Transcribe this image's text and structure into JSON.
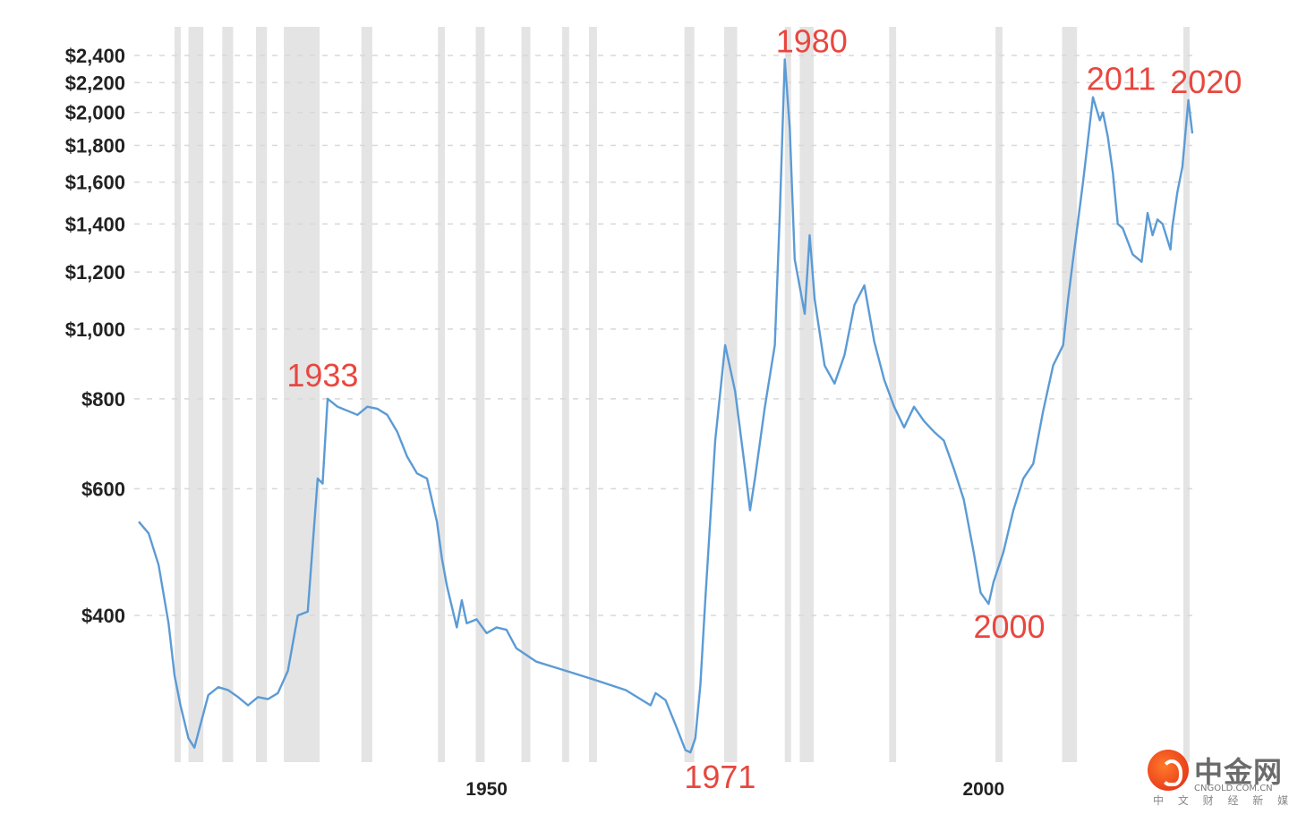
{
  "chart_data": {
    "type": "line",
    "title": "",
    "xlabel": "",
    "ylabel": "",
    "x_ticks": [
      "1950",
      "2000"
    ],
    "y_ticks": [
      "$2,400",
      "$2,200",
      "$2,000",
      "$1,800",
      "$1,600",
      "$1,400",
      "$1,200",
      "$1,000",
      "$800",
      "$600",
      "$400"
    ],
    "y_tick_values": [
      2400,
      2200,
      2000,
      1800,
      1600,
      1400,
      1200,
      1000,
      800,
      600,
      400
    ],
    "y_scale": "log",
    "xlim": [
      1915,
      2021
    ],
    "ylim": [
      240,
      2450
    ],
    "grid": "horizontal dashed",
    "series_color": "#5b9bd5",
    "recession_color": "#e4e4e4",
    "recessions": [
      [
        1918.6,
        1919.1
      ],
      [
        1920.0,
        1921.5
      ],
      [
        1923.4,
        1924.5
      ],
      [
        1926.8,
        1927.9
      ],
      [
        1929.6,
        1933.2
      ],
      [
        1937.4,
        1938.5
      ],
      [
        1945.1,
        1945.8
      ],
      [
        1948.9,
        1949.8
      ],
      [
        1953.5,
        1954.4
      ],
      [
        1957.6,
        1958.3
      ],
      [
        1960.3,
        1961.1
      ],
      [
        1969.9,
        1970.9
      ],
      [
        1973.9,
        1975.2
      ],
      [
        1980.0,
        1980.5
      ],
      [
        1981.5,
        1982.9
      ],
      [
        1990.5,
        1991.2
      ],
      [
        2001.2,
        2001.9
      ],
      [
        2007.9,
        2009.4
      ],
      [
        2020.1,
        2020.4
      ]
    ],
    "series": [
      {
        "x": [
          1915.0,
          1916.0,
          1917.0,
          1918.0,
          1918.6,
          1919.2,
          1920.0,
          1920.6,
          1921.0,
          1922.0,
          1923.0,
          1924.0,
          1925.0,
          1926.0,
          1927.0,
          1928.0,
          1929.0,
          1930.0,
          1931.0,
          1932.0,
          1933.0,
          1933.5,
          1934.0,
          1935.0,
          1936.0,
          1937.0,
          1938.0,
          1939.0,
          1940.0,
          1941.0,
          1942.0,
          1943.0,
          1944.0,
          1945.0,
          1945.5,
          1946.0,
          1947.0,
          1947.5,
          1948.0,
          1949.0,
          1950.0,
          1951.0,
          1952.0,
          1953.0,
          1955.0,
          1958.0,
          1961.0,
          1964.0,
          1966.5,
          1967.0,
          1968.0,
          1969.0,
          1970.0,
          1970.5,
          1971.0,
          1971.5,
          1972.0,
          1973.0,
          1974.0,
          1975.0,
          1976.0,
          1976.5,
          1977.0,
          1978.0,
          1979.0,
          1979.5,
          1980.0,
          1980.5,
          1981.0,
          1982.0,
          1982.5,
          1983.0,
          1984.0,
          1985.0,
          1986.0,
          1987.0,
          1988.0,
          1989.0,
          1990.0,
          1991.0,
          1992.0,
          1993.0,
          1994.0,
          1995.0,
          1996.0,
          1997.0,
          1998.0,
          1999.0,
          1999.7,
          2000.5,
          2001.0,
          2002.0,
          2003.0,
          2004.0,
          2005.0,
          2006.0,
          2007.0,
          2008.0,
          2008.5,
          2009.0,
          2010.0,
          2011.0,
          2011.7,
          2012.0,
          2012.5,
          2013.0,
          2013.5,
          2014.0,
          2015.0,
          2015.9,
          2016.5,
          2017.0,
          2017.5,
          2018.0,
          2018.8,
          2019.0,
          2019.5,
          2020.0,
          2020.6,
          2021.0
        ],
        "y": [
          540,
          520,
          470,
          390,
          330,
          300,
          270,
          262,
          275,
          310,
          318,
          315,
          308,
          300,
          308,
          306,
          312,
          335,
          400,
          405,
          620,
          610,
          800,
          780,
          770,
          760,
          780,
          775,
          760,
          720,
          665,
          630,
          620,
          540,
          480,
          440,
          385,
          420,
          390,
          395,
          378,
          385,
          382,
          360,
          345,
          335,
          325,
          315,
          300,
          312,
          305,
          282,
          260,
          258,
          270,
          320,
          420,
          700,
          950,
          820,
          640,
          560,
          620,
          780,
          950,
          1450,
          2370,
          1900,
          1250,
          1050,
          1350,
          1100,
          890,
          840,
          920,
          1080,
          1150,
          960,
          850,
          780,
          730,
          780,
          745,
          720,
          700,
          640,
          580,
          490,
          430,
          415,
          445,
          490,
          560,
          620,
          650,
          770,
          890,
          950,
          1100,
          1250,
          1600,
          2100,
          1950,
          2000,
          1850,
          1650,
          1400,
          1380,
          1270,
          1240,
          1450,
          1350,
          1420,
          1400,
          1290,
          1390,
          1550,
          1680,
          2080,
          1870
        ]
      }
    ],
    "annotations": [
      {
        "label": "1933",
        "x": 1933.5,
        "y": 800
      },
      {
        "label": "1971",
        "x": 1970.6,
        "y": 258
      },
      {
        "label": "1980",
        "x": 1980.0,
        "y": 2370
      },
      {
        "label": "2000",
        "x": 1999.7,
        "y": 415
      },
      {
        "label": "2011",
        "x": 2011.5,
        "y": 2100
      },
      {
        "label": "2020",
        "x": 2020.4,
        "y": 2080
      }
    ]
  },
  "logo": {
    "name": "中金网",
    "domain": "CNGOLD.COM.CN",
    "tagline": "中 文 财 经 新 媒 体"
  }
}
